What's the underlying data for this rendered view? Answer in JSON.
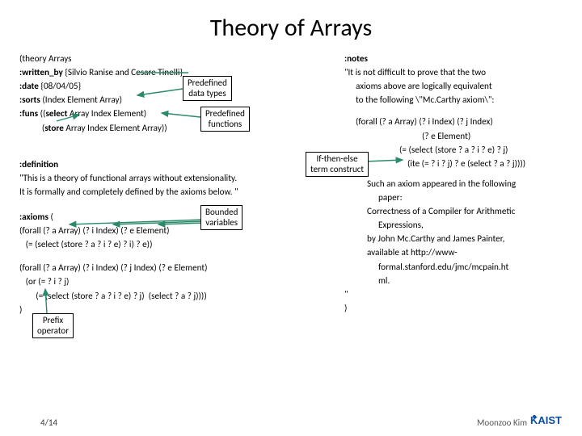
{
  "title": "Theory of Arrays",
  "left": {
    "l1": "(theory Arrays",
    "l2a": ":written_by",
    "l2b": " {Silvio Ranise and Cesare Tinelli}",
    "l3a": ":date",
    "l3b": " {08/04/05}",
    "l4a": ":sorts",
    "l4b": " (Index Element Array)",
    "l5a": ":funs",
    "l5b": " ((",
    "l5c": "select",
    "l5d": " Array Index Element)",
    "l6a": "           (",
    "l6b": "store",
    "l6c": " Array Index Element Array))",
    "def_kw": ":definition",
    "def1": "\"This is a theory of functional arrays without extensionality.",
    "def2": "It is formally and completely defined by the axioms below. \"",
    "ax_kw": ":axioms",
    "ax_paren": " (",
    "ax1": "(forall (? a Array) (? i Index) (? e Element)",
    "ax2": "   (= (select (store ? a ? i ? e) ? i) ? e))",
    "ax3": "(forall (? a Array) (? i Index) (? j Index) (? e Element)",
    "ax4": "   (or (= ? i ? j)",
    "ax5": "        (= (select (store ? a ? i ? e) ? j)  (select ? a ? j))))",
    "close": ")"
  },
  "right": {
    "notes_kw": ":notes",
    "n1": "\"It is not difficult to prove that the two",
    "n2": "axioms above are logically equivalent",
    "n3": "to the following \\\"Mc.Carthy axiom\\\":",
    "f1": "(forall  (? a Array) (? i Index) (? j Index)",
    "f2": "(? e Element)",
    "f3": "(= (select (store ? a ? i ? e) ? j)",
    "f4": "(ite (= ? i ? j) ? e (select ? a ? j))))",
    "p1": "Such an axiom appeared in the following",
    "p2": "paper:",
    "p3": "Correctness of a Compiler for Arithmetic",
    "p4": "Expressions,",
    "p5": "by John Mc.Carthy and James Painter,",
    "p6": "available at http://www-",
    "p7": "formal.stanford.edu/jmc/mcpain.ht",
    "p8": "ml.",
    "q": "\"",
    "cp": ")"
  },
  "callouts": {
    "predef_types": "Predefined\ndata types",
    "predef_funcs": "Predefined\nfunctions",
    "ifthen": "If-then-else\nterm construct",
    "bounded": "Bounded\nvariables",
    "prefix": "Prefix\noperator"
  },
  "footer": {
    "page": "4/14",
    "author": "Moonzoo Kim",
    "logo": "KAIST"
  },
  "colors": {
    "arrow": "#2a8a6a",
    "arrow_accent": "#2a8a6a",
    "logo_blue": "#0b4da2"
  }
}
